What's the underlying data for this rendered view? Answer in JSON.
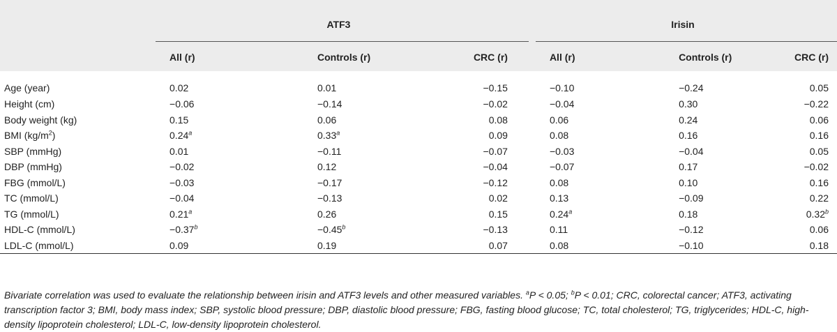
{
  "groups": [
    "ATF3",
    "Irisin"
  ],
  "columns": [
    "All (r)",
    "Controls (r)",
    "CRC (r)",
    "All (r)",
    "Controls (r)",
    "CRC (r)"
  ],
  "rows": [
    {
      "label": "Age (year)",
      "values": [
        "0.02",
        "0.01",
        "−0.15",
        "−0.10",
        "−0.24",
        "0.05"
      ],
      "sups": [
        "",
        "",
        "",
        "",
        "",
        ""
      ]
    },
    {
      "label": "Height (cm)",
      "values": [
        "−0.06",
        "−0.14",
        "−0.02",
        "−0.04",
        "0.30",
        "−0.22"
      ],
      "sups": [
        "",
        "",
        "",
        "",
        "",
        ""
      ]
    },
    {
      "label": "Body weight (kg)",
      "values": [
        "0.15",
        "0.06",
        "0.08",
        "0.06",
        "0.24",
        "0.06"
      ],
      "sups": [
        "",
        "",
        "",
        "",
        "",
        ""
      ]
    },
    {
      "label": "BMI (kg/m",
      "label_sup": "2",
      "label_tail": ")",
      "values": [
        "0.24",
        "0.33",
        "0.09",
        "0.08",
        "0.16",
        "0.16"
      ],
      "sups": [
        "a",
        "a",
        "",
        "",
        "",
        ""
      ]
    },
    {
      "label": "SBP (mmHg)",
      "values": [
        "0.01",
        "−0.11",
        "−0.07",
        "−0.03",
        "−0.04",
        "0.05"
      ],
      "sups": [
        "",
        "",
        "",
        "",
        "",
        ""
      ]
    },
    {
      "label": "DBP (mmHg)",
      "values": [
        "−0.02",
        "0.12",
        "−0.04",
        "−0.07",
        "0.17",
        "−0.02"
      ],
      "sups": [
        "",
        "",
        "",
        "",
        "",
        ""
      ]
    },
    {
      "label": "FBG (mmol/L)",
      "values": [
        "−0.03",
        "−0.17",
        "−0.12",
        "0.08",
        "0.10",
        "0.16"
      ],
      "sups": [
        "",
        "",
        "",
        "",
        "",
        ""
      ]
    },
    {
      "label": "TC (mmol/L)",
      "values": [
        "−0.04",
        "−0.13",
        "0.02",
        "0.13",
        "−0.09",
        "0.22"
      ],
      "sups": [
        "",
        "",
        "",
        "",
        "",
        ""
      ]
    },
    {
      "label": "TG (mmol/L)",
      "values": [
        "0.21",
        "0.26",
        "0.15",
        "0.24",
        "0.18",
        "0.32"
      ],
      "sups": [
        "a",
        "",
        "",
        "a",
        "",
        "b"
      ]
    },
    {
      "label": "HDL-C (mmol/L)",
      "values": [
        "−0.37",
        "−0.45",
        "−0.13",
        "0.11",
        "−0.12",
        "0.06"
      ],
      "sups": [
        "b",
        "b",
        "",
        "",
        "",
        ""
      ]
    },
    {
      "label": "LDL-C (mmol/L)",
      "values": [
        "0.09",
        "0.19",
        "0.07",
        "0.08",
        "−0.10",
        "0.18"
      ],
      "sups": [
        "",
        "",
        "",
        "",
        "",
        ""
      ]
    }
  ],
  "footnote": {
    "lead": "Bivariate correlation was used to evaluate the relationship between irisin and ATF3 levels and other measured variables. ",
    "sup_a": "a",
    "p_a": "P < 0.05; ",
    "sup_b": "b",
    "p_b": "P < 0.01; CRC, colorectal cancer; ATF3, activating transcription factor 3; BMI, body mass index; SBP, systolic blood pressure; DBP, diastolic blood pressure; FBG, fasting blood glucose; TC, total cholesterol; TG, triglycerides; HDL-C, high-density lipoprotein cholesterol; LDL-C, low-density lipoprotein cholesterol."
  }
}
